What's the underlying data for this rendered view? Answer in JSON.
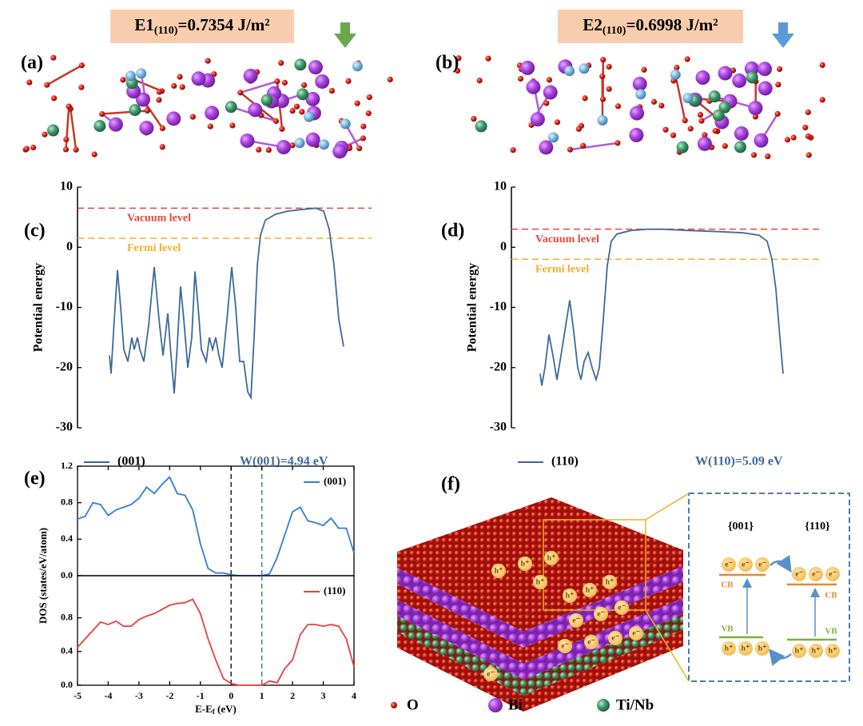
{
  "panel_labels": [
    "(a)",
    "(b)",
    "(c)",
    "(d)",
    "(e)",
    "(f)"
  ],
  "structures": [
    {
      "energy": [
        "E1",
        "(110)",
        "=0.7354 J/m²"
      ]
    },
    {
      "energy": [
        "E2",
        "(110)",
        "=0.6998 J/m²"
      ]
    }
  ],
  "chart_data": [
    {
      "type": "line",
      "ylabel": "Potential energy",
      "xlim": [
        0,
        368
      ],
      "ylim": [
        -30,
        10
      ],
      "yticks": [
        -30,
        -20,
        -10,
        0,
        10
      ],
      "x": [
        40,
        42,
        46,
        50,
        54,
        58,
        63,
        68,
        71,
        75,
        78,
        83,
        89,
        96,
        102,
        107,
        113,
        117,
        121,
        125,
        129,
        133,
        138,
        143,
        147,
        151,
        155,
        161,
        165,
        169,
        173,
        177,
        181,
        187,
        193,
        198,
        203,
        208,
        213,
        217,
        221,
        225,
        229,
        235,
        248,
        263,
        283,
        298,
        308,
        315,
        321,
        327,
        333
      ],
      "series": [
        {
          "name": "(001)",
          "color": "#3d6a9c",
          "values": [
            -18,
            -21,
            -12,
            -3.8,
            -10,
            -17,
            -19,
            -15,
            -17,
            -15,
            -17,
            -19,
            -13,
            -3.3,
            -12,
            -18,
            -11,
            -18,
            -24.3,
            -16,
            -6.5,
            -12,
            -20,
            -15,
            -4,
            -10,
            -17,
            -19,
            -15,
            -17,
            -15,
            -18,
            -20,
            -12,
            -3.3,
            -10,
            -19,
            -19,
            -24,
            -25,
            -15,
            -3,
            2,
            4.5,
            5.5,
            6,
            6.3,
            6.5,
            6,
            3,
            -3,
            -12,
            -16.5
          ]
        }
      ],
      "hlines": [
        {
          "value": 6.5,
          "label": "Vacuum level",
          "color": "#e8473c"
        },
        {
          "value": 1.5,
          "label": "Fermi level",
          "color": "#f4b023"
        }
      ],
      "annotation": "W(001)=4.94 eV"
    },
    {
      "type": "line",
      "ylabel": "Potential energy",
      "xlim": [
        0,
        385
      ],
      "ylim": [
        -30,
        10
      ],
      "yticks": [
        -30,
        -20,
        -10,
        0,
        10
      ],
      "x": [
        36,
        38,
        42,
        47,
        52,
        57,
        62,
        68,
        73,
        78,
        83,
        87,
        91,
        96,
        101,
        106,
        110,
        115,
        120,
        125,
        132,
        150,
        170,
        190,
        220,
        260,
        290,
        310,
        320,
        326,
        331,
        336,
        340
      ],
      "series": [
        {
          "name": "(110)",
          "color": "#3d6a9c",
          "values": [
            -21,
            -23,
            -20,
            -14.5,
            -18,
            -22,
            -18,
            -13,
            -8.8,
            -14,
            -20,
            -22,
            -19,
            -17.5,
            -20,
            -22,
            -20,
            -12,
            -3,
            1,
            2.2,
            2.8,
            3,
            3,
            2.8,
            2.6,
            2.4,
            2,
            1,
            -2,
            -7,
            -15,
            -21
          ]
        }
      ],
      "hlines": [
        {
          "value": 3,
          "label": "Vacuum level",
          "color": "#e8473c"
        },
        {
          "value": -2,
          "label": "Fermi level",
          "color": "#f4b023"
        }
      ],
      "annotation": "W(110)=5.09 eV"
    },
    {
      "type": "line",
      "xlim": [
        -5,
        4
      ],
      "ylim": [
        0,
        1.2
      ],
      "yticks": [
        {
          "value": 0,
          "label": "0.0"
        },
        0.4,
        0.8,
        1.2
      ],
      "x": [
        -5,
        -4.75,
        -4.5,
        -4.25,
        -4,
        -3.75,
        -3.5,
        -3.25,
        -3,
        -2.75,
        -2.5,
        -2.25,
        -2,
        -1.75,
        -1.5,
        -1.25,
        -1,
        -0.75,
        -0.5,
        -0.25,
        0,
        0.25,
        0.5,
        0.75,
        1,
        1.25,
        1.5,
        1.75,
        2,
        2.25,
        2.5,
        2.75,
        3,
        3.25,
        3.5,
        3.75,
        4
      ],
      "series": [
        {
          "name": "(001)",
          "color": "#2f7fd6",
          "values": [
            0.62,
            0.65,
            0.8,
            0.78,
            0.66,
            0.72,
            0.75,
            0.78,
            0.85,
            0.97,
            0.9,
            1.0,
            1.08,
            0.9,
            0.88,
            0.72,
            0.35,
            0.08,
            0.03,
            0.03,
            0.01,
            0,
            0,
            0,
            0,
            0.02,
            0.2,
            0.45,
            0.7,
            0.75,
            0.6,
            0.58,
            0.55,
            0.63,
            0.52,
            0.52,
            0.25
          ]
        }
      ],
      "vlines": [
        {
          "value": 0,
          "color": "#222222"
        },
        {
          "value": 1,
          "color": "#3a78b5"
        }
      ]
    },
    {
      "type": "line",
      "xlabel": [
        "E-E",
        "f",
        " (eV)"
      ],
      "ylabel": "DOS (states/eV/atom)",
      "xlim": [
        -5,
        4
      ],
      "xticks": [
        -5,
        -4,
        -3,
        -2,
        -1,
        0,
        1,
        2,
        3,
        4
      ],
      "ylim": [
        0,
        1.3
      ],
      "yticks": [
        {
          "value": 0,
          "label": "0.0"
        },
        0.4,
        0.8
      ],
      "x": [
        -5,
        -4.75,
        -4.5,
        -4.25,
        -4,
        -3.75,
        -3.5,
        -3.25,
        -3,
        -2.75,
        -2.5,
        -2.25,
        -2,
        -1.75,
        -1.5,
        -1.25,
        -1,
        -0.75,
        -0.5,
        -0.25,
        0,
        0.25,
        0.5,
        0.75,
        1,
        1.25,
        1.5,
        1.75,
        2,
        2.25,
        2.5,
        2.75,
        3,
        3.25,
        3.5,
        3.75,
        4
      ],
      "series": [
        {
          "name": "(110)",
          "color": "#e8413c",
          "values": [
            0.45,
            0.55,
            0.65,
            0.75,
            0.72,
            0.76,
            0.7,
            0.7,
            0.78,
            0.82,
            0.85,
            0.9,
            0.95,
            0.97,
            0.98,
            1.02,
            0.85,
            0.55,
            0.3,
            0.08,
            0.02,
            0,
            0,
            0,
            0,
            0.05,
            0.03,
            0.2,
            0.3,
            0.6,
            0.72,
            0.72,
            0.7,
            0.72,
            0.7,
            0.55,
            0.22
          ]
        }
      ],
      "vlines": [
        {
          "value": 0,
          "color": "#222222"
        },
        {
          "value": 1,
          "color": "#3a78b5"
        }
      ]
    }
  ],
  "diagram": {
    "facets": [
      "{001}",
      "{110}"
    ],
    "cb": "CB",
    "vb": "VB",
    "electron": "e⁻",
    "hole": "h⁺"
  },
  "legend": [
    "O",
    "Bi",
    "Ti/Nb"
  ]
}
